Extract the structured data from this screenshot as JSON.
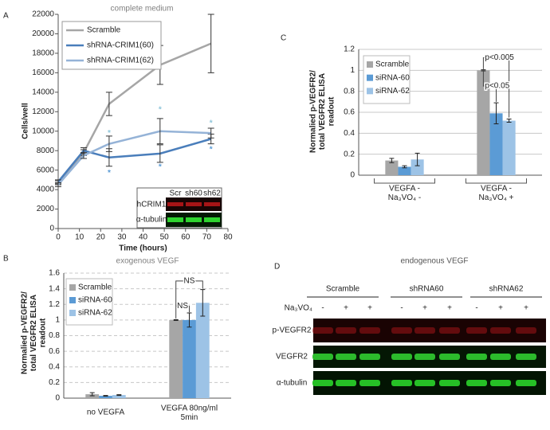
{
  "panels": [
    "A",
    "B",
    "C",
    "D"
  ],
  "chart_data": [
    {
      "type": "line",
      "title": "complete medium",
      "xlabel": "Time (hours)",
      "ylabel": "Cells/well",
      "x": [
        0,
        12,
        24,
        48,
        72
      ],
      "xlim": [
        0,
        80
      ],
      "xticks": [
        0,
        10,
        20,
        30,
        40,
        50,
        60,
        70,
        80
      ],
      "ylim": [
        0,
        22000
      ],
      "yticks": [
        0,
        2000,
        4000,
        6000,
        8000,
        10000,
        12000,
        14000,
        16000,
        18000,
        20000,
        22000
      ],
      "legend": "upper left",
      "series": [
        {
          "name": "Scramble",
          "color": "#a6a6a6",
          "values": [
            4700,
            7800,
            12800,
            16800,
            19000
          ],
          "errors": [
            200,
            300,
            1200,
            2000,
            3000
          ]
        },
        {
          "name": "shRNA-CRIM1(60)",
          "color": "#4a7ebb",
          "values": [
            4800,
            8000,
            7300,
            7700,
            9200
          ],
          "errors": [
            200,
            300,
            900,
            900,
            500
          ]
        },
        {
          "name": "shRNA-CRIM1(62)",
          "color": "#95b3d7",
          "values": [
            4500,
            7500,
            8700,
            10000,
            9800
          ],
          "errors": [
            200,
            300,
            800,
            1300,
            500
          ]
        }
      ],
      "annotations": [
        {
          "text": "*",
          "x": 24,
          "y": 9800,
          "color": "#8ec5da"
        },
        {
          "text": "*",
          "x": 24,
          "y": 5700,
          "color": "#5a9bd5"
        },
        {
          "text": "*",
          "x": 48,
          "y": 12200,
          "color": "#8ec5da"
        },
        {
          "text": "*",
          "x": 48,
          "y": 6300,
          "color": "#5a9bd5"
        },
        {
          "text": "*",
          "x": 72,
          "y": 10800,
          "color": "#8ec5da"
        },
        {
          "text": "*",
          "x": 72,
          "y": 8100,
          "color": "#5a9bd5"
        }
      ]
    },
    {
      "type": "bar",
      "title": "exogenous VEGF",
      "ylabel": "Normalied p-VEGFR2/\ntotal VEGFR2 ELISA\nreadout",
      "categories": [
        "no VEGFA",
        "VEGFA 80ng/ml\n5min"
      ],
      "ylim": [
        0,
        1.6
      ],
      "yticks": [
        0,
        0.2,
        0.4,
        0.6,
        0.8,
        1,
        1.2,
        1.4,
        1.6
      ],
      "grid": true,
      "legend": "upper left",
      "series": [
        {
          "name": "Scramble",
          "color": "#a6a6a6",
          "values": [
            0.05,
            1.0
          ],
          "errors": [
            0.02,
            0.005
          ]
        },
        {
          "name": "siRNA-60",
          "color": "#5b9bd5",
          "values": [
            0.03,
            1.0
          ],
          "errors": [
            0.005,
            0.09
          ]
        },
        {
          "name": "siRNA-62",
          "color": "#9dc3e6",
          "values": [
            0.04,
            1.22
          ],
          "errors": [
            0.005,
            0.17
          ]
        }
      ],
      "annotations": [
        {
          "text": "NS"
        },
        {
          "text": "NS"
        }
      ]
    },
    {
      "type": "bar",
      "ylabel": "Normalied p-VEGFR2/\ntotal VEGFR2 ELISA\nreadout",
      "categories": [
        "VEGFA  -\nNa₃VO₄  -",
        "VEGFA  -\nNa₃VO₄ +"
      ],
      "ylim": [
        0,
        1.2
      ],
      "yticks": [
        0,
        0.2,
        0.4,
        0.6,
        0.8,
        1,
        1.2
      ],
      "grid": true,
      "legend": "upper left",
      "series": [
        {
          "name": "Scramble",
          "color": "#a6a6a6",
          "values": [
            0.14,
            1.0
          ],
          "errors": [
            0.02,
            0.005
          ]
        },
        {
          "name": "siRNA-60",
          "color": "#5b9bd5",
          "values": [
            0.08,
            0.59
          ],
          "errors": [
            0.01,
            0.1
          ]
        },
        {
          "name": "siRNA-62",
          "color": "#9dc3e6",
          "values": [
            0.15,
            0.52
          ],
          "errors": [
            0.06,
            0.015
          ]
        }
      ],
      "annotations": [
        {
          "text": "p<0.005"
        },
        {
          "text": "p<0.05"
        }
      ]
    }
  ],
  "inset_blot": {
    "lanes": [
      "Scr",
      "sh60",
      "sh62"
    ],
    "rows": [
      "hCRIM1",
      "α-tubulin"
    ]
  },
  "blot_d": {
    "title": "endogenous VEGF",
    "groups": [
      "Scramble",
      "shRNA60",
      "shRNA62"
    ],
    "treatment": "Na₃VO₄",
    "signs": [
      "-",
      "+",
      "+",
      "-",
      "+",
      "+",
      "-",
      "+",
      "+"
    ],
    "rows": [
      "p-VEGFR2",
      "VEGFR2",
      "α-tubulin"
    ]
  }
}
